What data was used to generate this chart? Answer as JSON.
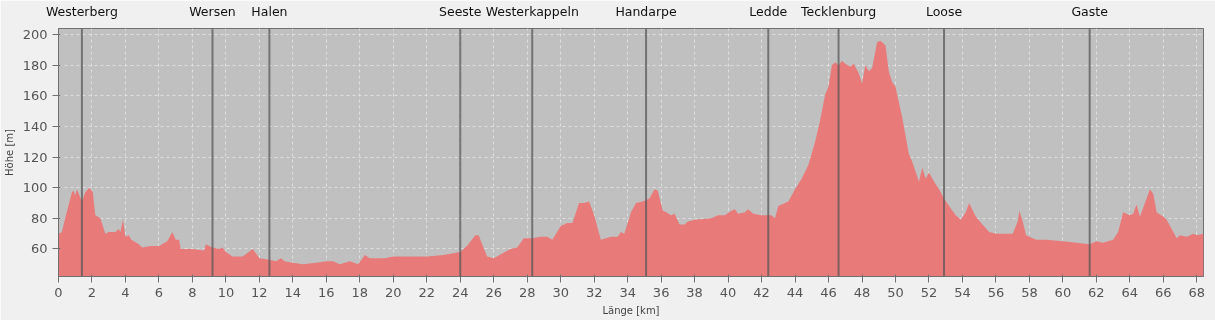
{
  "chart_data": {
    "type": "area",
    "xlabel": "Länge [km]",
    "ylabel": "Höhe [m]",
    "xlim": [
      0,
      68.4
    ],
    "ylim": [
      42,
      204
    ],
    "xticks": [
      0,
      2,
      4,
      6,
      8,
      10,
      12,
      14,
      16,
      18,
      20,
      22,
      24,
      26,
      28,
      30,
      32,
      34,
      36,
      38,
      40,
      42,
      44,
      46,
      48,
      50,
      52,
      54,
      56,
      58,
      60,
      62,
      64,
      66,
      68
    ],
    "yticks": [
      60,
      80,
      100,
      120,
      140,
      160,
      180,
      200
    ],
    "grid": true,
    "series": [
      {
        "color": "#e87a7a",
        "x": [
          0,
          0.2,
          0.35,
          0.8,
          0.9,
          1.0,
          1.1,
          1.4,
          1.6,
          1.85,
          2.05,
          2.2,
          2.5,
          2.8,
          3.0,
          3.4,
          3.6,
          3.7,
          3.85,
          4.0,
          4.2,
          4.35,
          4.8,
          5.0,
          5.5,
          6.0,
          6.5,
          6.8,
          7.0,
          7.2,
          7.3,
          8.0,
          8.7,
          8.8,
          9.2,
          9.6,
          9.8,
          10.0,
          10.4,
          11.0,
          11.6,
          12.0,
          12.6,
          13.0,
          13.3,
          13.5,
          14.0,
          14.6,
          15.4,
          16.0,
          16.4,
          16.8,
          17.4,
          17.9,
          18.3,
          18.6,
          19.5,
          20.0,
          21.0,
          22,
          23,
          23.5,
          24,
          24.4,
          24.9,
          25.1,
          25.6,
          26,
          26.5,
          27,
          27.4,
          27.8,
          28.3,
          28.8,
          29.2,
          29.5,
          30.0,
          30.4,
          30.7,
          31.1,
          31.4,
          31.7,
          32.0,
          32.4,
          33.0,
          33.4,
          33.6,
          33.8,
          34.2,
          34.5,
          34.9,
          35.3,
          35.6,
          35.8,
          36.1,
          36.3,
          36.6,
          36.8,
          37.1,
          37.4,
          37.6,
          38.0,
          39.0,
          39.4,
          39.8,
          40.2,
          40.4,
          40.6,
          41.0,
          41.2,
          41.5,
          42.0,
          42.6,
          42.8,
          43.0,
          43.6,
          44.0,
          44.4,
          44.8,
          45.2,
          45.5,
          45.8,
          46.0,
          46.2,
          46.4,
          46.6,
          46.8,
          47.0,
          47.3,
          47.5,
          47.8,
          48.0,
          48.2,
          48.4,
          48.6,
          48.9,
          49.1,
          49.4,
          49.6,
          49.8,
          50.0,
          50.4,
          50.8,
          51.0,
          51.4,
          51.6,
          51.8,
          52.0,
          52.3,
          52.6,
          52.9,
          53.2,
          53.6,
          53.9,
          54.2,
          54.4,
          54.8,
          55.2,
          55.6,
          56,
          57.0,
          57.3,
          57.4,
          57.6,
          57.8,
          58.4,
          59.0,
          60.0,
          60.8,
          61.6,
          62,
          62.4,
          63,
          63.3,
          63.6,
          64.0,
          64.2,
          64.4,
          64.6,
          65.0,
          65.2,
          65.4,
          65.6,
          66.0,
          66.2,
          66.6,
          66.8,
          67.0,
          67.4,
          67.8,
          68.0,
          68.4
        ],
        "values": [
          70,
          71,
          78,
          97,
          98,
          95,
          99,
          91,
          97,
          100,
          97,
          82,
          80,
          70,
          71,
          71,
          73,
          71,
          79,
          68,
          69,
          66,
          63,
          61,
          62,
          62,
          65,
          71,
          66,
          66,
          60,
          60,
          59,
          63,
          61,
          60,
          61,
          58,
          55,
          55,
          60,
          54,
          53,
          52,
          54,
          52,
          51,
          50,
          51,
          52,
          52,
          50,
          52,
          50,
          56,
          54,
          54,
          55,
          55,
          55,
          56,
          57,
          58,
          62,
          69,
          69,
          55,
          54,
          57,
          60,
          61,
          67,
          67,
          68,
          68,
          66,
          75,
          77,
          77,
          90,
          90,
          91,
          82,
          66,
          68,
          68,
          71,
          70,
          84,
          90,
          91,
          93,
          99,
          98,
          85,
          84,
          82,
          83,
          76,
          76,
          78,
          79,
          80,
          82,
          82,
          85,
          86,
          83,
          84,
          86,
          83,
          82,
          82,
          80,
          88,
          91,
          99,
          106,
          115,
          130,
          144,
          161,
          166,
          180,
          182,
          180,
          183,
          181,
          179,
          181,
          175,
          168,
          180,
          176,
          178,
          195,
          196,
          193,
          176,
          169,
          166,
          146,
          122,
          117,
          104,
          113,
          106,
          110,
          104,
          99,
          93,
          88,
          82,
          79,
          84,
          90,
          81,
          76,
          71,
          70,
          70,
          78,
          85,
          78,
          69,
          66,
          66,
          65,
          64,
          63,
          65,
          64,
          66,
          71,
          84,
          82,
          83,
          89,
          81,
          93,
          99,
          96,
          84,
          81,
          79,
          71,
          67,
          69,
          68,
          70,
          69,
          70
        ]
      }
    ],
    "ref_lines": [
      {
        "axis": "x",
        "value": 1.4,
        "label": "Westerberg"
      },
      {
        "axis": "x",
        "value": 9.2,
        "label": "Wersen"
      },
      {
        "axis": "x",
        "value": 12.6,
        "label": "Halen"
      },
      {
        "axis": "x",
        "value": 24.0,
        "label": "Seeste"
      },
      {
        "axis": "x",
        "value": 28.3,
        "label": "Westerkappeln"
      },
      {
        "axis": "x",
        "value": 35.1,
        "label": "Handarpe"
      },
      {
        "axis": "x",
        "value": 42.4,
        "label": "Ledde"
      },
      {
        "axis": "x",
        "value": 46.6,
        "label": "Tecklenburg"
      },
      {
        "axis": "x",
        "value": 52.9,
        "label": "Loose"
      },
      {
        "axis": "x",
        "value": 61.6,
        "label": "Gaste"
      }
    ]
  }
}
